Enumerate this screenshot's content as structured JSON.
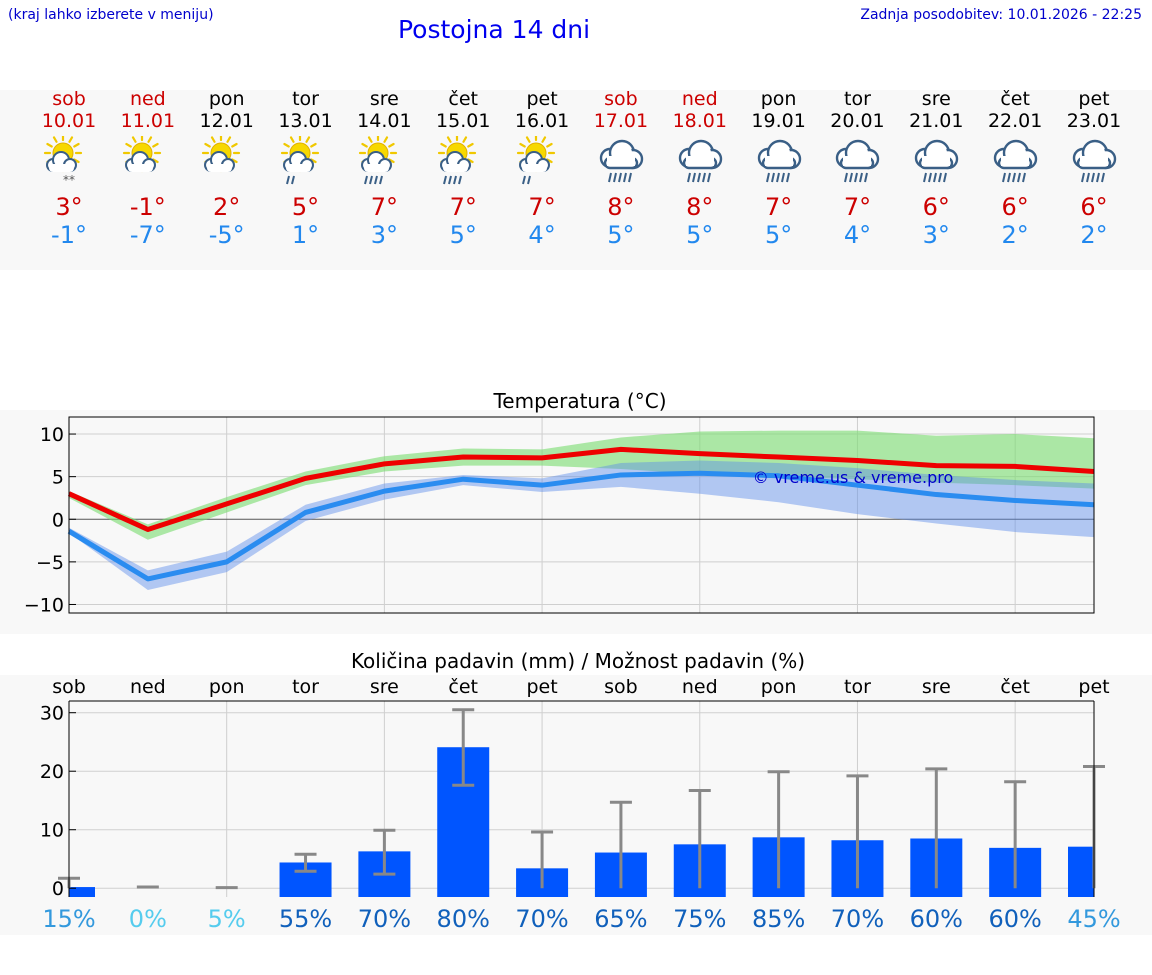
{
  "header": {
    "hint": "(kraj lahko izberete v meniju)",
    "title": "Postojna 14 dni",
    "updated": "Zadnja posodobitev: 10.01.2026 - 22:25"
  },
  "colors": {
    "weekend": "#cc0000",
    "weekday": "#000000",
    "max_temp": "#cc0000",
    "min_temp": "#2288ee",
    "bar": "#0055ff"
  },
  "days": [
    {
      "name": "sob",
      "date": "10.01",
      "weekend": true,
      "icon": "sun-cloud-snow-icon",
      "max": "3°",
      "min": "-1°",
      "precip_pct": "15%"
    },
    {
      "name": "ned",
      "date": "11.01",
      "weekend": true,
      "icon": "sun-cloud-icon",
      "max": "-1°",
      "min": "-7°",
      "precip_pct": "0%"
    },
    {
      "name": "pon",
      "date": "12.01",
      "weekend": false,
      "icon": "sun-cloud-icon",
      "max": "2°",
      "min": "-5°",
      "precip_pct": "5%"
    },
    {
      "name": "tor",
      "date": "13.01",
      "weekend": false,
      "icon": "sun-cloud-rain-icon",
      "max": "5°",
      "min": "1°",
      "precip_pct": "55%"
    },
    {
      "name": "sre",
      "date": "14.01",
      "weekend": false,
      "icon": "sun-cloud-heavy-rain-icon",
      "max": "7°",
      "min": "3°",
      "precip_pct": "70%"
    },
    {
      "name": "čet",
      "date": "15.01",
      "weekend": false,
      "icon": "sun-cloud-heavy-rain-icon",
      "max": "7°",
      "min": "5°",
      "precip_pct": "80%"
    },
    {
      "name": "pet",
      "date": "16.01",
      "weekend": false,
      "icon": "sun-cloud-rain-icon",
      "max": "7°",
      "min": "4°",
      "precip_pct": "70%"
    },
    {
      "name": "sob",
      "date": "17.01",
      "weekend": true,
      "icon": "cloud-heavy-rain-icon",
      "max": "8°",
      "min": "5°",
      "precip_pct": "65%"
    },
    {
      "name": "ned",
      "date": "18.01",
      "weekend": true,
      "icon": "cloud-heavy-rain-icon",
      "max": "8°",
      "min": "5°",
      "precip_pct": "75%"
    },
    {
      "name": "pon",
      "date": "19.01",
      "weekend": false,
      "icon": "cloud-heavy-rain-icon",
      "max": "7°",
      "min": "5°",
      "precip_pct": "85%"
    },
    {
      "name": "tor",
      "date": "20.01",
      "weekend": false,
      "icon": "cloud-heavy-rain-icon",
      "max": "7°",
      "min": "4°",
      "precip_pct": "70%"
    },
    {
      "name": "sre",
      "date": "21.01",
      "weekend": false,
      "icon": "cloud-heavy-rain-icon",
      "max": "6°",
      "min": "3°",
      "precip_pct": "60%"
    },
    {
      "name": "čet",
      "date": "22.01",
      "weekend": false,
      "icon": "cloud-heavy-rain-icon",
      "max": "6°",
      "min": "2°",
      "precip_pct": "60%"
    },
    {
      "name": "pet",
      "date": "23.01",
      "weekend": false,
      "icon": "cloud-heavy-rain-icon",
      "max": "6°",
      "min": "2°",
      "precip_pct": "45%"
    }
  ],
  "chart_data": [
    {
      "type": "line",
      "title": "Temperatura (°C)",
      "watermark": "© vreme.us & vreme.pro",
      "ylim": [
        -11,
        12
      ],
      "yticks": [
        10,
        5,
        0,
        -5,
        -10
      ],
      "ytick_labels": [
        "10",
        "5",
        "0",
        "−5",
        "−10"
      ],
      "x": [
        0,
        1,
        2,
        3,
        4,
        5,
        6,
        7,
        8,
        9,
        10,
        11,
        12,
        13
      ],
      "series": [
        {
          "name": "max",
          "values": [
            3.0,
            -1.2,
            1.8,
            4.8,
            6.5,
            7.3,
            7.2,
            8.2,
            7.7,
            7.3,
            6.9,
            6.3,
            6.2,
            5.6
          ]
        },
        {
          "name": "max_low",
          "values": [
            2.5,
            -2.4,
            0.8,
            4.0,
            5.6,
            6.3,
            6.3,
            5.9,
            5.3,
            5.0,
            4.7,
            4.3,
            4.0,
            3.6
          ]
        },
        {
          "name": "max_high",
          "values": [
            3.3,
            -0.6,
            2.6,
            5.6,
            7.4,
            8.3,
            8.2,
            9.6,
            10.3,
            10.4,
            10.4,
            9.8,
            10.0,
            9.5
          ]
        },
        {
          "name": "min",
          "values": [
            -1.4,
            -7.0,
            -5.0,
            0.8,
            3.3,
            4.7,
            4.0,
            5.2,
            5.4,
            5.1,
            4.0,
            2.9,
            2.2,
            1.7
          ]
        },
        {
          "name": "min_low",
          "values": [
            -1.6,
            -8.3,
            -6.2,
            -0.2,
            2.3,
            4.0,
            3.2,
            3.8,
            3.0,
            2.0,
            0.6,
            -0.5,
            -1.5,
            -2.1
          ]
        },
        {
          "name": "min_high",
          "values": [
            -1.0,
            -6.0,
            -3.8,
            1.7,
            4.2,
            5.2,
            4.8,
            6.6,
            6.9,
            6.6,
            6.0,
            5.2,
            4.6,
            4.2
          ]
        }
      ]
    },
    {
      "type": "bar",
      "title": "Količina padavin (mm) / Možnost padavin (%)",
      "categories": [
        "sob",
        "ned",
        "pon",
        "tor",
        "sre",
        "čet",
        "pet",
        "sob",
        "ned",
        "pon",
        "tor",
        "sre",
        "čet",
        "pet"
      ],
      "ylim": [
        -1.5,
        32
      ],
      "yticks": [
        30,
        20,
        10,
        0
      ],
      "ytick_labels": [
        "30",
        "20",
        "10",
        "0"
      ],
      "values": [
        0.2,
        0,
        0,
        4.4,
        6.3,
        24.1,
        3.4,
        6.1,
        7.5,
        8.7,
        8.2,
        8.5,
        6.9,
        7.1
      ],
      "error_low": [
        0,
        0,
        0,
        2.9,
        2.4,
        17.6,
        0,
        0,
        0,
        0,
        0,
        0,
        0,
        0
      ],
      "error_high": [
        1.7,
        0.2,
        0.1,
        5.8,
        9.9,
        30.5,
        9.6,
        14.7,
        16.7,
        19.9,
        19.2,
        20.4,
        18.2,
        20.8
      ]
    }
  ]
}
